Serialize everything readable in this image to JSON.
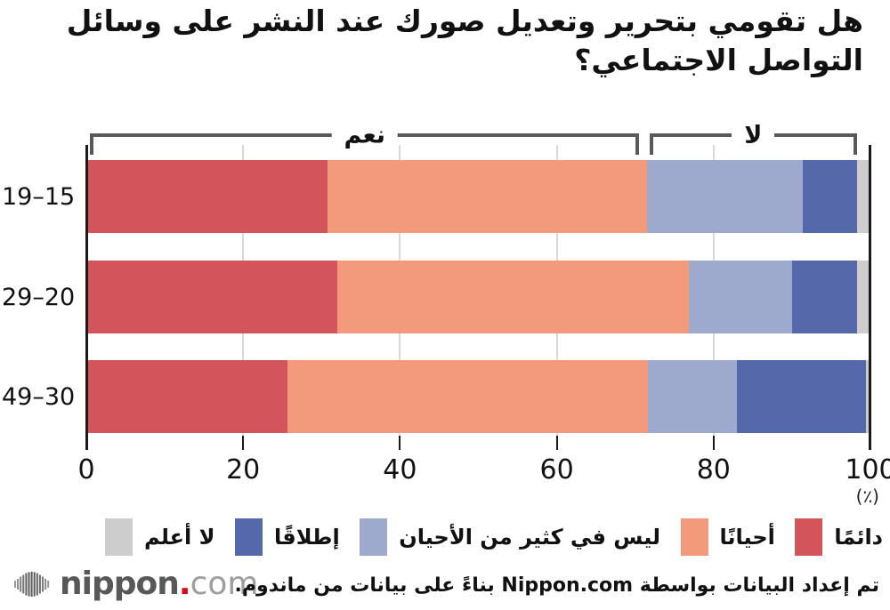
{
  "title": "هل تقومي بتحرير وتعديل صورك عند النشر على وسائل التواصل الاجتماعي؟",
  "chart_data": {
    "type": "bar",
    "stacked": true,
    "orientation": "horizontal",
    "title": "هل تقومي بتحرير وتعديل صورك عند النشر على وسائل التواصل الاجتماعي؟",
    "categories": [
      "15–19",
      "20–29",
      "30–49"
    ],
    "categories_display": [
      "19–15",
      "29–20",
      "49–30"
    ],
    "series": [
      {
        "name": "دائمًا",
        "color": "#d4545b",
        "values": [
          30.8,
          32.0,
          25.6
        ]
      },
      {
        "name": "أحيانًا",
        "color": "#f29a7b",
        "values": [
          40.7,
          44.8,
          46.0
        ]
      },
      {
        "name": "ليس في كثير من الأحيان",
        "color": "#9ea9ce",
        "values": [
          19.9,
          13.2,
          11.4
        ]
      },
      {
        "name": "إطلاقًا",
        "color": "#5569aa",
        "values": [
          6.9,
          8.3,
          16.4
        ]
      },
      {
        "name": "لا أعلم",
        "color": "#cdcdcd",
        "values": [
          1.7,
          1.7,
          0.6
        ]
      }
    ],
    "xlim": [
      0,
      100
    ],
    "ticks": [
      "0",
      "20",
      "40",
      "60",
      "80",
      "100"
    ],
    "unit_label": "(٪)",
    "grid": true,
    "legend_position": "bottom",
    "brackets": [
      {
        "label": "نعم",
        "from_pct": 0.5,
        "to_pct": 70.5
      },
      {
        "label": "لا",
        "from_pct": 71.8,
        "to_pct": 98.3
      }
    ],
    "colors_meta": {
      "bracket": "#595959",
      "axis": "#1a1a1a",
      "gridline": "#d8d8d8"
    }
  },
  "footer": {
    "attribution": "تم إعداد البيانات بواسطة Nippon.com بناءً على بيانات من ماندوم.",
    "logo": {
      "name": "nippon",
      "dot": ".",
      "tld": "com"
    }
  }
}
